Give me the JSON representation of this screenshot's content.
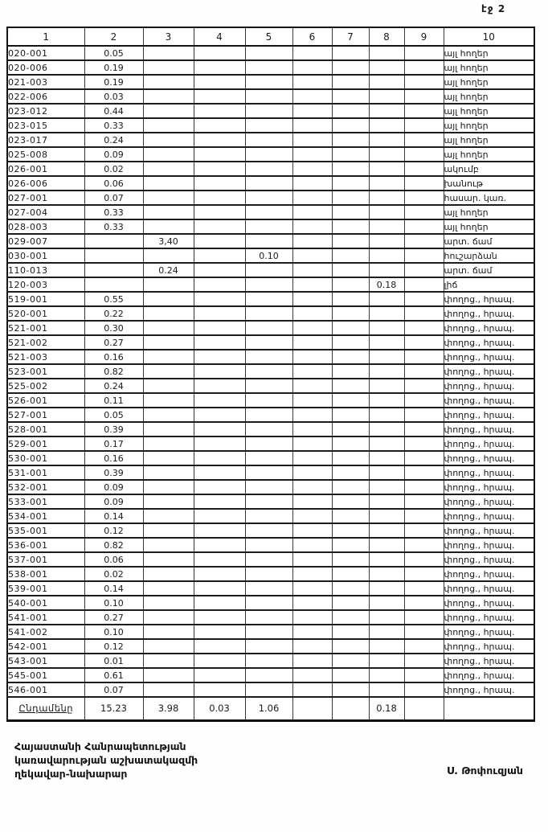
{
  "page": {
    "number_label": "էջ 2"
  },
  "table": {
    "columns": [
      "1",
      "2",
      "3",
      "4",
      "5",
      "6",
      "7",
      "8",
      "9",
      "10"
    ],
    "margin_mark_glyph": "չմ",
    "rows": [
      {
        "code": "020-001",
        "c2": "0.05",
        "c3": "",
        "c4": "",
        "c5": "",
        "c6": "",
        "c7": "",
        "c8": "",
        "c9": "",
        "c10": "այլ հողեր",
        "mark": false
      },
      {
        "code": "020-006",
        "c2": "0.19",
        "c3": "",
        "c4": "",
        "c5": "",
        "c6": "",
        "c7": "",
        "c8": "",
        "c9": "",
        "c10": "այլ հողեր",
        "mark": false
      },
      {
        "code": "021-003",
        "c2": "0.19",
        "c3": "",
        "c4": "",
        "c5": "",
        "c6": "",
        "c7": "",
        "c8": "",
        "c9": "",
        "c10": "այլ հողեր",
        "mark": false
      },
      {
        "code": "022-006",
        "c2": "0.03",
        "c3": "",
        "c4": "",
        "c5": "",
        "c6": "",
        "c7": "",
        "c8": "",
        "c9": "",
        "c10": "այլ հողեր",
        "mark": false
      },
      {
        "code": "023-012",
        "c2": "0.44",
        "c3": "",
        "c4": "",
        "c5": "",
        "c6": "",
        "c7": "",
        "c8": "",
        "c9": "",
        "c10": "այլ հողեր",
        "mark": false
      },
      {
        "code": "023-015",
        "c2": "0.33",
        "c3": "",
        "c4": "",
        "c5": "",
        "c6": "",
        "c7": "",
        "c8": "",
        "c9": "",
        "c10": "այլ հողեր",
        "mark": false
      },
      {
        "code": "023-017",
        "c2": "0.24",
        "c3": "",
        "c4": "",
        "c5": "",
        "c6": "",
        "c7": "",
        "c8": "",
        "c9": "",
        "c10": "այլ հողեր",
        "mark": false
      },
      {
        "code": "025-008",
        "c2": "0.09",
        "c3": "",
        "c4": "",
        "c5": "",
        "c6": "",
        "c7": "",
        "c8": "",
        "c9": "",
        "c10": "այլ հողեր",
        "mark": false
      },
      {
        "code": "026-001",
        "c2": "0.02",
        "c3": "",
        "c4": "",
        "c5": "",
        "c6": "",
        "c7": "",
        "c8": "",
        "c9": "",
        "c10": "ակումբ",
        "mark": false
      },
      {
        "code": "026-006",
        "c2": "0.06",
        "c3": "",
        "c4": "",
        "c5": "",
        "c6": "",
        "c7": "",
        "c8": "",
        "c9": "",
        "c10": "խանութ",
        "mark": false
      },
      {
        "code": "027-001",
        "c2": "0.07",
        "c3": "",
        "c4": "",
        "c5": "",
        "c6": "",
        "c7": "",
        "c8": "",
        "c9": "",
        "c10": "հասար. կառ.",
        "mark": false
      },
      {
        "code": "027-004",
        "c2": "0.33",
        "c3": "",
        "c4": "",
        "c5": "",
        "c6": "",
        "c7": "",
        "c8": "",
        "c9": "",
        "c10": "այլ հողեր",
        "mark": false
      },
      {
        "code": "028-003",
        "c2": "0.33",
        "c3": "",
        "c4": "",
        "c5": "",
        "c6": "",
        "c7": "",
        "c8": "",
        "c9": "",
        "c10": "այլ հողեր",
        "mark": false
      },
      {
        "code": "029-007",
        "c2": "",
        "c3": "3,40",
        "c4": "",
        "c5": "",
        "c6": "",
        "c7": "",
        "c8": "",
        "c9": "",
        "c10": "արտ. ճամ",
        "mark": false
      },
      {
        "code": "030-001",
        "c2": "",
        "c3": "",
        "c4": "",
        "c5": "0.10",
        "c6": "",
        "c7": "",
        "c8": "",
        "c9": "",
        "c10": "հուշարձան",
        "mark": true
      },
      {
        "code": "110-013",
        "c2": "",
        "c3": "0.24",
        "c4": "",
        "c5": "",
        "c6": "",
        "c7": "",
        "c8": "",
        "c9": "",
        "c10": "արտ. ճամ",
        "mark": false
      },
      {
        "code": "120-003",
        "c2": "",
        "c3": "",
        "c4": "",
        "c5": "",
        "c6": "",
        "c7": "",
        "c8": "0.18",
        "c9": "",
        "c10": "լիճ",
        "mark": true
      },
      {
        "code": "519-001",
        "c2": "0.55",
        "c3": "",
        "c4": "",
        "c5": "",
        "c6": "",
        "c7": "",
        "c8": "",
        "c9": "",
        "c10": "փողոց., հրապ.",
        "mark": true
      },
      {
        "code": "520-001",
        "c2": "0.22",
        "c3": "",
        "c4": "",
        "c5": "",
        "c6": "",
        "c7": "",
        "c8": "",
        "c9": "",
        "c10": "փողոց., հրապ.",
        "mark": true
      },
      {
        "code": "521-001",
        "c2": "0.30",
        "c3": "",
        "c4": "",
        "c5": "",
        "c6": "",
        "c7": "",
        "c8": "",
        "c9": "",
        "c10": "փողոց., հրապ.",
        "mark": true
      },
      {
        "code": "521-002",
        "c2": "0.27",
        "c3": "",
        "c4": "",
        "c5": "",
        "c6": "",
        "c7": "",
        "c8": "",
        "c9": "",
        "c10": "փողոց., հրապ.",
        "mark": true
      },
      {
        "code": "521-003",
        "c2": "0.16",
        "c3": "",
        "c4": "",
        "c5": "",
        "c6": "",
        "c7": "",
        "c8": "",
        "c9": "",
        "c10": "փողոց., հրապ.",
        "mark": true
      },
      {
        "code": "523-001",
        "c2": "0.82",
        "c3": "",
        "c4": "",
        "c5": "",
        "c6": "",
        "c7": "",
        "c8": "",
        "c9": "",
        "c10": "փողոց., հրապ.",
        "mark": true
      },
      {
        "code": "525-002",
        "c2": "0.24",
        "c3": "",
        "c4": "",
        "c5": "",
        "c6": "",
        "c7": "",
        "c8": "",
        "c9": "",
        "c10": "փողոց., հրապ.",
        "mark": true
      },
      {
        "code": "526-001",
        "c2": "0.11",
        "c3": "",
        "c4": "",
        "c5": "",
        "c6": "",
        "c7": "",
        "c8": "",
        "c9": "",
        "c10": "փողոց., հրապ.",
        "mark": true
      },
      {
        "code": "527-001",
        "c2": "0.05",
        "c3": "",
        "c4": "",
        "c5": "",
        "c6": "",
        "c7": "",
        "c8": "",
        "c9": "",
        "c10": "փողոց., հրապ.",
        "mark": true
      },
      {
        "code": "528-001",
        "c2": "0.39",
        "c3": "",
        "c4": "",
        "c5": "",
        "c6": "",
        "c7": "",
        "c8": "",
        "c9": "",
        "c10": "փողոց., հրապ.",
        "mark": true
      },
      {
        "code": "529-001",
        "c2": "0.17",
        "c3": "",
        "c4": "",
        "c5": "",
        "c6": "",
        "c7": "",
        "c8": "",
        "c9": "",
        "c10": "փողոց., հրապ.",
        "mark": true
      },
      {
        "code": "530-001",
        "c2": "0.16",
        "c3": "",
        "c4": "",
        "c5": "",
        "c6": "",
        "c7": "",
        "c8": "",
        "c9": "",
        "c10": "փողոց., հրապ.",
        "mark": true
      },
      {
        "code": "531-001",
        "c2": "0.39",
        "c3": "",
        "c4": "",
        "c5": "",
        "c6": "",
        "c7": "",
        "c8": "",
        "c9": "",
        "c10": "փողոց., հրապ.",
        "mark": true
      },
      {
        "code": "532-001",
        "c2": "0.09",
        "c3": "",
        "c4": "",
        "c5": "",
        "c6": "",
        "c7": "",
        "c8": "",
        "c9": "",
        "c10": "փողոց., հրապ.",
        "mark": true
      },
      {
        "code": "533-001",
        "c2": "0.09",
        "c3": "",
        "c4": "",
        "c5": "",
        "c6": "",
        "c7": "",
        "c8": "",
        "c9": "",
        "c10": "փողոց., հրապ.",
        "mark": true
      },
      {
        "code": "534-001",
        "c2": "0.14",
        "c3": "",
        "c4": "",
        "c5": "",
        "c6": "",
        "c7": "",
        "c8": "",
        "c9": "",
        "c10": "փողոց., հրապ.",
        "mark": true
      },
      {
        "code": "535-001",
        "c2": "0.12",
        "c3": "",
        "c4": "",
        "c5": "",
        "c6": "",
        "c7": "",
        "c8": "",
        "c9": "",
        "c10": "փողոց., հրապ.",
        "mark": true
      },
      {
        "code": "536-001",
        "c2": "0.82",
        "c3": "",
        "c4": "",
        "c5": "",
        "c6": "",
        "c7": "",
        "c8": "",
        "c9": "",
        "c10": "փողոց., հրապ.",
        "mark": true
      },
      {
        "code": "537-001",
        "c2": "0.06",
        "c3": "",
        "c4": "",
        "c5": "",
        "c6": "",
        "c7": "",
        "c8": "",
        "c9": "",
        "c10": "փողոց., հրապ.",
        "mark": true
      },
      {
        "code": "538-001",
        "c2": "0.02",
        "c3": "",
        "c4": "",
        "c5": "",
        "c6": "",
        "c7": "",
        "c8": "",
        "c9": "",
        "c10": "փողոց., հրապ.",
        "mark": true
      },
      {
        "code": "539-001",
        "c2": "0.14",
        "c3": "",
        "c4": "",
        "c5": "",
        "c6": "",
        "c7": "",
        "c8": "",
        "c9": "",
        "c10": "փողոց., հրապ.",
        "mark": true
      },
      {
        "code": "540-001",
        "c2": "0.10",
        "c3": "",
        "c4": "",
        "c5": "",
        "c6": "",
        "c7": "",
        "c8": "",
        "c9": "",
        "c10": "փողոց., հրապ.",
        "mark": true
      },
      {
        "code": "541-001",
        "c2": "0.27",
        "c3": "",
        "c4": "",
        "c5": "",
        "c6": "",
        "c7": "",
        "c8": "",
        "c9": "",
        "c10": "փողոց., հրապ.",
        "mark": true
      },
      {
        "code": "541-002",
        "c2": "0.10",
        "c3": "",
        "c4": "",
        "c5": "",
        "c6": "",
        "c7": "",
        "c8": "",
        "c9": "",
        "c10": "փողոց., հրապ.",
        "mark": true
      },
      {
        "code": "542-001",
        "c2": "0.12",
        "c3": "",
        "c4": "",
        "c5": "",
        "c6": "",
        "c7": "",
        "c8": "",
        "c9": "",
        "c10": "փողոց., հրապ.",
        "mark": true
      },
      {
        "code": "543-001",
        "c2": "0.01",
        "c3": "",
        "c4": "",
        "c5": "",
        "c6": "",
        "c7": "",
        "c8": "",
        "c9": "",
        "c10": "փողոց., հրապ.",
        "mark": true
      },
      {
        "code": "545-001",
        "c2": "0.61",
        "c3": "",
        "c4": "",
        "c5": "",
        "c6": "",
        "c7": "",
        "c8": "",
        "c9": "",
        "c10": "փողոց., հրապ.",
        "mark": true
      },
      {
        "code": "546-001",
        "c2": "0.07",
        "c3": "",
        "c4": "",
        "c5": "",
        "c6": "",
        "c7": "",
        "c8": "",
        "c9": "",
        "c10": "փողոց., հրապ.",
        "mark": true
      }
    ],
    "total": {
      "label": "Ընդամենը",
      "c2": "15.23",
      "c3": "3.98",
      "c4": "0.03",
      "c5": "1.06",
      "c6": "",
      "c7": "",
      "c8": "0.18",
      "c9": "",
      "c10": ""
    }
  },
  "footer": {
    "line1": "Հայաստանի Հանրապետության",
    "line2": "կառավարության աշխատակազմի",
    "line3": "ղեկավար-նախարար",
    "signature": "Ս. Թոփուզյան"
  }
}
